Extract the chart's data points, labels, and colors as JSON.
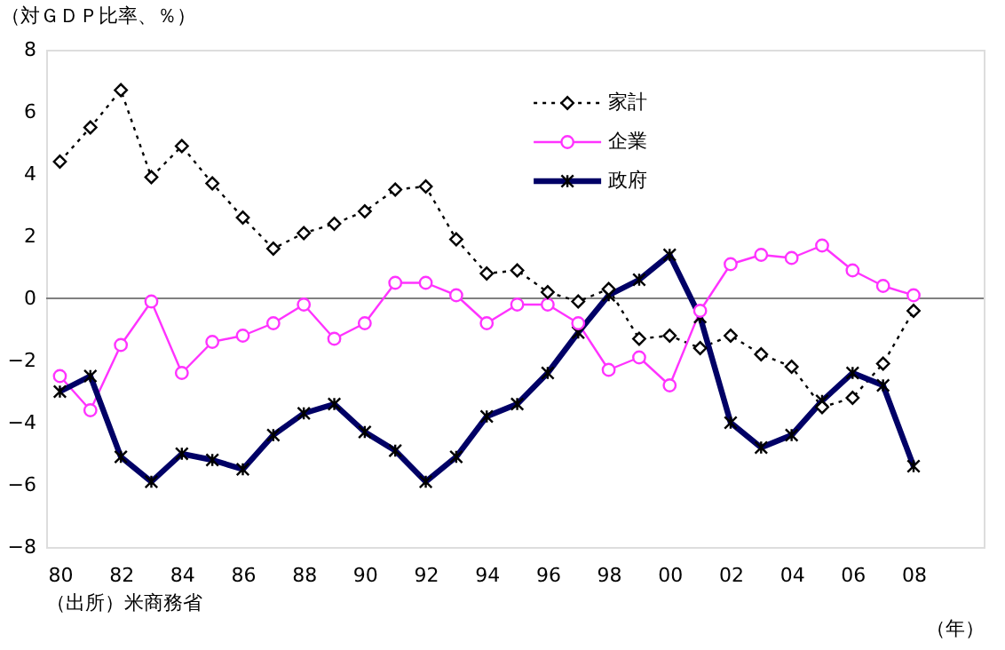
{
  "chart_data": {
    "type": "line",
    "ylabel": "（対ＧＤＰ比率、％）",
    "xlabel": "（年）",
    "annotations": [
      "（出所）米商務省"
    ],
    "categories": [
      "80",
      null,
      "82",
      null,
      "84",
      null,
      "86",
      null,
      "88",
      null,
      "90",
      null,
      "92",
      null,
      "94",
      null,
      "96",
      null,
      "98",
      null,
      "00",
      null,
      "02",
      null,
      "04",
      null,
      "06",
      null,
      "08"
    ],
    "series": [
      {
        "name": "家計",
        "color": "#000000",
        "line_style": "dotted",
        "marker": "diamond",
        "values": [
          4.4,
          5.5,
          6.7,
          3.9,
          4.9,
          3.7,
          2.6,
          1.6,
          2.1,
          2.4,
          2.8,
          3.5,
          3.6,
          1.9,
          0.8,
          0.9,
          0.2,
          -0.1,
          0.3,
          -1.3,
          -1.2,
          -1.6,
          -1.2,
          -1.8,
          -2.2,
          -3.5,
          -3.2,
          -2.1,
          -0.4
        ]
      },
      {
        "name": "企業",
        "color": "#ff33ff",
        "line_style": "solid",
        "marker": "circle",
        "values": [
          -2.5,
          -3.6,
          -1.5,
          -0.1,
          -2.4,
          -1.4,
          -1.2,
          -0.8,
          -0.2,
          -1.3,
          -0.8,
          0.5,
          0.5,
          0.1,
          -0.8,
          -0.2,
          -0.2,
          -0.8,
          -2.3,
          -1.9,
          -2.8,
          -0.4,
          1.1,
          1.4,
          1.3,
          1.7,
          0.9,
          0.4,
          0.1
        ]
      },
      {
        "name": "政府",
        "color": "#000066",
        "line_style": "solid",
        "marker": "cross",
        "values": [
          -3.0,
          -2.5,
          -5.1,
          -5.9,
          -5.0,
          -5.2,
          -5.5,
          -4.4,
          -3.7,
          -3.4,
          -4.3,
          -4.9,
          -5.9,
          -5.1,
          -3.8,
          -3.4,
          -2.4,
          -1.1,
          0.1,
          0.6,
          1.4,
          -0.6,
          -4.0,
          -4.8,
          -4.4,
          -3.3,
          -2.4,
          -2.8,
          -5.4
        ]
      }
    ],
    "ylim": [
      -8,
      8
    ],
    "yticks": [
      -8,
      -6,
      -4,
      -2,
      0,
      2,
      4,
      6,
      8
    ],
    "ref_lines": [
      {
        "axis": "y",
        "value": 0,
        "color": "#808080"
      }
    ],
    "legend": "top right"
  }
}
